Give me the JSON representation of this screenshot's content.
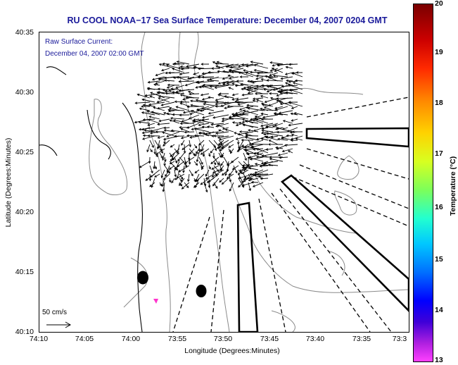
{
  "title": "RU COOL  NOAA−17  Sea Surface Temperature:  December 04, 2007 0204 GMT",
  "subtitle_line1": "Raw Surface Current:",
  "subtitle_line2": "December 04, 2007 02:00 GMT",
  "scale_label": "50 cm/s",
  "map_data": {
    "xlabel": "Longitude (Degrees:Minutes)",
    "ylabel": "Latitude (Degrees:Minutes)",
    "x_ticks": [
      "74:10",
      "74:05",
      "74:00",
      "73:55",
      "73:50",
      "73:45",
      "73:40",
      "73:35",
      "73:3"
    ],
    "y_ticks": [
      "40:35",
      "40:30",
      "40:25",
      "40:20",
      "40:15",
      "40:10"
    ],
    "colorbar": {
      "label": "Temperature (°C)",
      "ticks": [
        "20",
        "19",
        "18",
        "17",
        "16",
        "15",
        "14",
        "13"
      ],
      "range": [
        13,
        20
      ]
    }
  },
  "colors": {
    "title": "#1a1a9a",
    "coast": "#000000",
    "contour": "#888888",
    "marker_pink": "#ff33cc"
  }
}
